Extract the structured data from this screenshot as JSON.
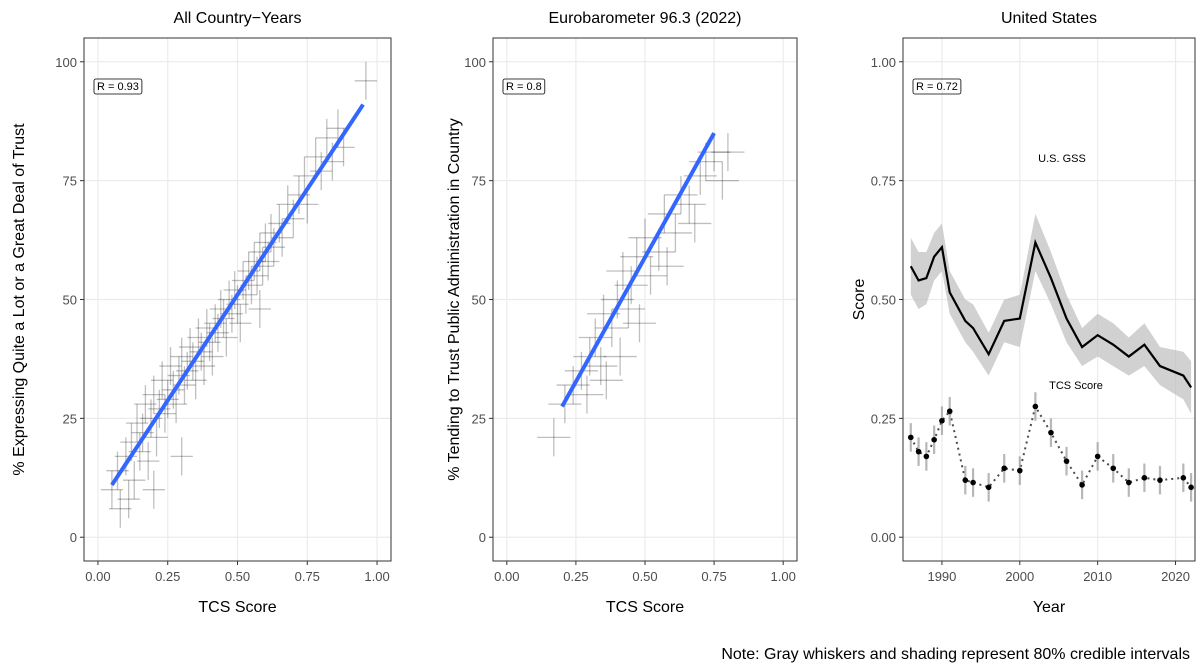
{
  "chart_data": [
    {
      "type": "scatter",
      "title": "All Country−Years",
      "x_label": "TCS Score",
      "y_label": "% Expressing Quite a Lot or a Great Deal of Trust",
      "annotation": "R = 0.93",
      "xlim": [
        -0.05,
        1.05
      ],
      "ylim": [
        -5,
        105
      ],
      "xticks": [
        {
          "value": 0,
          "label": "0.00"
        },
        {
          "value": 0.25,
          "label": "0.25"
        },
        {
          "value": 0.5,
          "label": "0.50"
        },
        {
          "value": 0.75,
          "label": "0.75"
        },
        {
          "value": 1,
          "label": "1.00"
        }
      ],
      "yticks": [
        0,
        25,
        50,
        75,
        100
      ],
      "grid": true,
      "color": "#000000",
      "x": [
        0.05,
        0.07,
        0.08,
        0.1,
        0.11,
        0.12,
        0.13,
        0.14,
        0.15,
        0.16,
        0.17,
        0.18,
        0.19,
        0.2,
        0.21,
        0.22,
        0.23,
        0.24,
        0.25,
        0.26,
        0.27,
        0.28,
        0.29,
        0.3,
        0.31,
        0.32,
        0.33,
        0.34,
        0.35,
        0.36,
        0.37,
        0.38,
        0.39,
        0.4,
        0.41,
        0.42,
        0.43,
        0.44,
        0.45,
        0.46,
        0.47,
        0.48,
        0.49,
        0.5,
        0.51,
        0.52,
        0.53,
        0.54,
        0.55,
        0.56,
        0.57,
        0.58,
        0.59,
        0.6,
        0.61,
        0.62,
        0.63,
        0.65,
        0.66,
        0.68,
        0.7,
        0.72,
        0.74,
        0.75,
        0.78,
        0.8,
        0.82,
        0.84,
        0.86,
        0.88,
        0.3,
        0.58,
        0.2,
        0.96
      ],
      "values": [
        10,
        14,
        6,
        17,
        8,
        20,
        12,
        24,
        18,
        22,
        28,
        16,
        25,
        30,
        21,
        27,
        33,
        26,
        29,
        36,
        31,
        28,
        34,
        38,
        32,
        35,
        40,
        37,
        33,
        42,
        39,
        36,
        44,
        41,
        38,
        45,
        43,
        48,
        46,
        42,
        50,
        47,
        52,
        49,
        45,
        54,
        51,
        56,
        53,
        58,
        55,
        60,
        57,
        62,
        58,
        64,
        61,
        66,
        63,
        70,
        67,
        72,
        76,
        70,
        80,
        77,
        84,
        79,
        86,
        82,
        17,
        48,
        10,
        96
      ],
      "x_err": 0.04,
      "y_err": 4,
      "fit": {
        "x": [
          0.05,
          0.95
        ],
        "values": [
          11,
          91
        ],
        "color": "#3366ff"
      }
    },
    {
      "type": "scatter",
      "title": "Eurobarometer 96.3 (2022)",
      "x_label": "TCS Score",
      "y_label": "% Tending to Trust Public Administration in Country",
      "annotation": "R = 0.8",
      "xlim": [
        -0.05,
        1.05
      ],
      "ylim": [
        -5,
        105
      ],
      "xticks": [
        {
          "value": 0,
          "label": "0.00"
        },
        {
          "value": 0.25,
          "label": "0.25"
        },
        {
          "value": 0.5,
          "label": "0.50"
        },
        {
          "value": 0.75,
          "label": "0.75"
        },
        {
          "value": 1,
          "label": "1.00"
        }
      ],
      "yticks": [
        0,
        25,
        50,
        75,
        100
      ],
      "grid": true,
      "color": "#000000",
      "x": [
        0.17,
        0.21,
        0.24,
        0.27,
        0.29,
        0.3,
        0.32,
        0.34,
        0.35,
        0.36,
        0.38,
        0.4,
        0.41,
        0.42,
        0.44,
        0.45,
        0.47,
        0.48,
        0.5,
        0.52,
        0.55,
        0.57,
        0.58,
        0.61,
        0.63,
        0.66,
        0.68,
        0.7,
        0.72,
        0.75,
        0.8,
        0.78
      ],
      "values": [
        21,
        28,
        32,
        35,
        30,
        38,
        42,
        36,
        47,
        33,
        44,
        50,
        38,
        56,
        48,
        53,
        59,
        45,
        63,
        55,
        60,
        68,
        57,
        64,
        72,
        70,
        66,
        76,
        79,
        81,
        81,
        75
      ],
      "x_err": 0.06,
      "y_err": 4,
      "fit": {
        "x": [
          0.2,
          0.75
        ],
        "values": [
          27.5,
          85
        ],
        "color": "#3366ff"
      }
    },
    {
      "type": "line",
      "title": "United States",
      "x_label": "Year",
      "y_label": "Score",
      "annotation": "R = 0.72",
      "xlim": [
        1985,
        2022.5
      ],
      "ylim": [
        -0.05,
        1.05
      ],
      "xticks": [
        1990,
        2000,
        2010,
        2020
      ],
      "yticks": [
        {
          "value": 0,
          "label": "0.00"
        },
        {
          "value": 0.25,
          "label": "0.25"
        },
        {
          "value": 0.5,
          "label": "0.50"
        },
        {
          "value": 0.75,
          "label": "0.75"
        },
        {
          "value": 1,
          "label": "1.00"
        }
      ],
      "grid": true,
      "series": [
        {
          "name": "U.S. GSS",
          "color": "#000000",
          "band_color": "#bebebe",
          "x": [
            1986,
            1987,
            1988,
            1989,
            1990,
            1991,
            1993,
            1994,
            1996,
            1998,
            2000,
            2002,
            2004,
            2006,
            2008,
            2010,
            2012,
            2014,
            2016,
            2018,
            2021,
            2022
          ],
          "values": [
            0.57,
            0.54,
            0.545,
            0.59,
            0.61,
            0.515,
            0.455,
            0.44,
            0.385,
            0.455,
            0.46,
            0.62,
            0.545,
            0.46,
            0.4,
            0.425,
            0.405,
            0.38,
            0.405,
            0.36,
            0.34,
            0.315
          ],
          "lower": [
            0.51,
            0.48,
            0.49,
            0.54,
            0.56,
            0.47,
            0.41,
            0.39,
            0.34,
            0.41,
            0.4,
            0.56,
            0.49,
            0.41,
            0.36,
            0.38,
            0.36,
            0.34,
            0.36,
            0.32,
            0.29,
            0.26
          ],
          "upper": [
            0.63,
            0.6,
            0.6,
            0.64,
            0.66,
            0.56,
            0.5,
            0.49,
            0.43,
            0.5,
            0.51,
            0.68,
            0.6,
            0.51,
            0.44,
            0.47,
            0.45,
            0.42,
            0.45,
            0.4,
            0.39,
            0.37
          ]
        },
        {
          "name": "TCS Score",
          "color": "#000000",
          "dashed": true,
          "x": [
            1986,
            1987,
            1988,
            1989,
            1990,
            1991,
            1993,
            1994,
            1996,
            1998,
            2000,
            2002,
            2004,
            2006,
            2008,
            2010,
            2012,
            2014,
            2016,
            2018,
            2021,
            2022
          ],
          "values": [
            0.21,
            0.18,
            0.17,
            0.205,
            0.245,
            0.265,
            0.12,
            0.115,
            0.105,
            0.145,
            0.14,
            0.275,
            0.22,
            0.16,
            0.11,
            0.17,
            0.145,
            0.115,
            0.125,
            0.12,
            0.125,
            0.105
          ],
          "errors": 0.03
        }
      ]
    }
  ],
  "note": "Note: Gray whiskers and shading represent 80% credible intervals"
}
